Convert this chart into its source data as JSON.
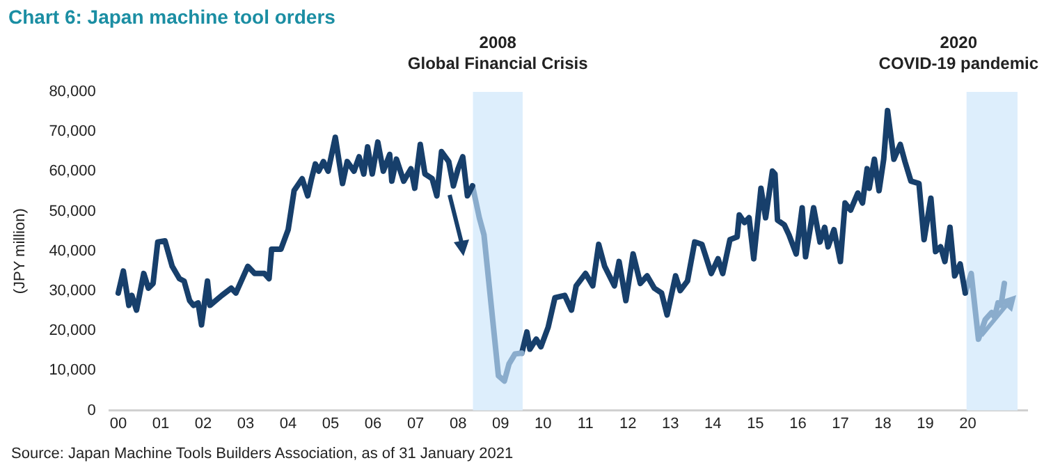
{
  "chart_data": {
    "type": "line",
    "title": "Chart 6: Japan machine tool orders",
    "ylabel": "(JPY million)",
    "annotations": [
      "Source: Japan Machine Tools Builders Association, as of 31 January 2021"
    ],
    "series": [
      {
        "color": "#173f6b",
        "x": [
          2000.0,
          2000.12,
          2000.25,
          2000.32,
          2000.43,
          2000.6,
          2000.71,
          2000.82,
          2000.93,
          2001.1,
          2001.27,
          2001.44,
          2001.55,
          2001.68,
          2001.77,
          2001.88,
          2001.96,
          2002.1,
          2002.16,
          2002.44,
          2002.66,
          2002.77,
          2003.05,
          2003.21,
          2003.44,
          2003.55,
          2003.61,
          2003.83,
          2004.0,
          2004.14,
          2004.33,
          2004.46,
          2004.55,
          2004.64,
          2004.72,
          2004.83,
          2004.94,
          2005.11,
          2005.28,
          2005.39,
          2005.55,
          2005.67,
          2005.78,
          2005.87,
          2005.98,
          2006.11,
          2006.24,
          2006.39,
          2006.44,
          2006.55,
          2006.72,
          2006.89,
          2006.98,
          2007.11,
          2007.22,
          2007.39,
          2007.5,
          2007.61,
          2007.78,
          2007.89,
          2008.0,
          2008.11,
          2008.22,
          2008.34
        ],
        "values": [
          29500,
          35000,
          26400,
          28900,
          25200,
          34400,
          30700,
          31900,
          42300,
          42600,
          36200,
          33100,
          32500,
          27600,
          26400,
          27000,
          21500,
          32500,
          26400,
          28900,
          30700,
          29500,
          36200,
          34400,
          34400,
          33100,
          40500,
          40500,
          45400,
          55200,
          58200,
          53900,
          58200,
          61900,
          60100,
          62500,
          60100,
          68600,
          57000,
          62500,
          60100,
          63700,
          59400,
          66200,
          59400,
          67400,
          60100,
          64300,
          57600,
          63100,
          57600,
          60700,
          55800,
          66800,
          59400,
          58200,
          53900,
          65000,
          62500,
          56400,
          60700,
          63700,
          53900,
          56400
        ]
      },
      {
        "color": "#8aaccc",
        "x": [
          2008.34,
          2008.5,
          2008.61,
          2008.78,
          2008.95,
          2009.09,
          2009.2,
          2009.34,
          2009.5
        ],
        "values": [
          56400,
          48400,
          44100,
          26400,
          8700,
          7400,
          11700,
          14200,
          14400
        ]
      },
      {
        "color": "#173f6b",
        "x": [
          2009.5,
          2009.62,
          2009.69,
          2009.84,
          2009.95,
          2010.12,
          2010.28,
          2010.51,
          2010.67,
          2010.78,
          2011.0,
          2011.17,
          2011.31,
          2011.45,
          2011.68,
          2011.79,
          2011.95,
          2012.12,
          2012.29,
          2012.45,
          2012.62,
          2012.79,
          2012.92,
          2013.12,
          2013.23,
          2013.4,
          2013.57,
          2013.74,
          2013.96,
          2014.12,
          2014.23,
          2014.4,
          2014.57,
          2014.62,
          2014.74,
          2014.85,
          2014.96,
          2015.13,
          2015.24,
          2015.4,
          2015.46,
          2015.52,
          2015.68,
          2015.79,
          2015.96,
          2016.1,
          2016.18,
          2016.37,
          2016.52,
          2016.63,
          2016.71,
          2016.85,
          2017.0,
          2017.11,
          2017.24,
          2017.41,
          2017.52,
          2017.63,
          2017.68,
          2017.8,
          2017.91,
          2018.02,
          2018.11,
          2018.26,
          2018.41,
          2018.52,
          2018.66,
          2018.85,
          2018.97,
          2019.13,
          2019.24,
          2019.36,
          2019.46,
          2019.58,
          2019.69,
          2019.82,
          2019.94
        ],
        "values": [
          14400,
          19700,
          15400,
          17900,
          16000,
          20900,
          28300,
          28900,
          25200,
          31300,
          34400,
          31300,
          41700,
          36200,
          31300,
          37400,
          27600,
          39300,
          31900,
          33800,
          30700,
          29500,
          24000,
          33800,
          30100,
          32500,
          42300,
          41700,
          34400,
          38100,
          34400,
          42900,
          43600,
          49100,
          47200,
          48400,
          38100,
          55800,
          48400,
          60100,
          59400,
          47800,
          46600,
          44100,
          39300,
          50900,
          38600,
          50900,
          42300,
          46000,
          41100,
          45400,
          37400,
          52100,
          50300,
          54600,
          52100,
          60700,
          55800,
          63100,
          55200,
          63100,
          75300,
          63100,
          66800,
          62500,
          57600,
          57000,
          42900,
          53300,
          39900,
          41100,
          37400,
          46000,
          33800,
          36800,
          29500
        ]
      },
      {
        "color": "#8aaccc",
        "x": [
          2019.94,
          2020.08,
          2020.25,
          2020.41,
          2020.56,
          2020.63,
          2020.71,
          2020.78,
          2020.86
        ],
        "values": [
          29500,
          34400,
          17900,
          22800,
          24600,
          23400,
          27000,
          26400,
          31900
        ]
      }
    ],
    "xlim": [
      1999.8,
      2021.4
    ],
    "xticks": [
      {
        "value": 2000,
        "label": "00"
      },
      {
        "value": 2001,
        "label": "01"
      },
      {
        "value": 2002,
        "label": "02"
      },
      {
        "value": 2003,
        "label": "03"
      },
      {
        "value": 2004,
        "label": "04"
      },
      {
        "value": 2005,
        "label": "05"
      },
      {
        "value": 2006,
        "label": "06"
      },
      {
        "value": 2007,
        "label": "07"
      },
      {
        "value": 2008,
        "label": "08"
      },
      {
        "value": 2009,
        "label": "09"
      },
      {
        "value": 2010,
        "label": "10"
      },
      {
        "value": 2011,
        "label": "11"
      },
      {
        "value": 2012,
        "label": "12"
      },
      {
        "value": 2013,
        "label": "13"
      },
      {
        "value": 2014,
        "label": "14"
      },
      {
        "value": 2015,
        "label": "15"
      },
      {
        "value": 2016,
        "label": "16"
      },
      {
        "value": 2017,
        "label": "17"
      },
      {
        "value": 2018,
        "label": "18"
      },
      {
        "value": 2019,
        "label": "19"
      },
      {
        "value": 2020,
        "label": "20"
      }
    ],
    "ylim": [
      0,
      80000
    ],
    "yticks": [
      0,
      {
        "value": 10000,
        "label": "10,000"
      },
      {
        "value": 20000,
        "label": "20,000"
      },
      {
        "value": 30000,
        "label": "30,000"
      },
      {
        "value": 40000,
        "label": "40,000"
      },
      {
        "value": 50000,
        "label": "50,000"
      },
      {
        "value": 60000,
        "label": "60,000"
      },
      {
        "value": 70000,
        "label": "70,000"
      },
      {
        "value": 80000,
        "label": "80,000"
      }
    ],
    "bands": [
      {
        "axis": "x",
        "from": 2008.35,
        "to": 2009.52,
        "label": "2008\nGlobal Financial Crisis",
        "color": "#ddeefc"
      },
      {
        "axis": "x",
        "from": 2019.97,
        "to": 2021.17,
        "label": "2020\nCOVID-19 pandemic",
        "color": "#ddeefc"
      }
    ],
    "grid": false,
    "legend": false,
    "marker": "none",
    "line_style": "solid"
  }
}
